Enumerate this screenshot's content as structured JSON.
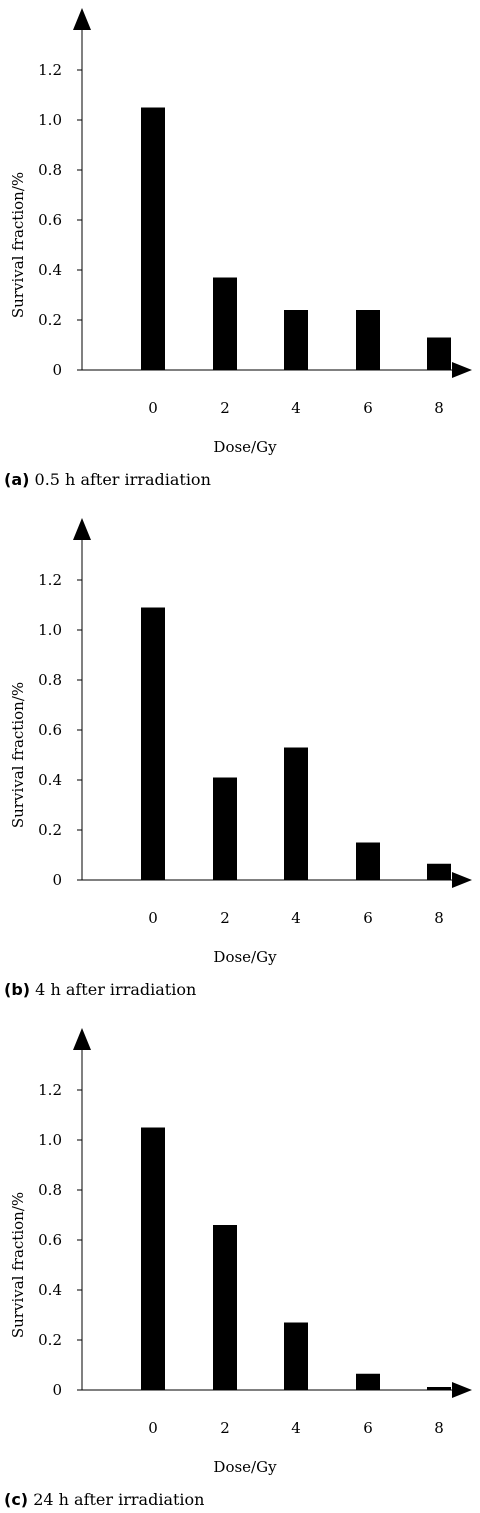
{
  "chart_data": [
    {
      "type": "bar",
      "panel_letter": "(a)",
      "caption": "0.5 h after irradiation",
      "categories": [
        "0",
        "2",
        "4",
        "6",
        "8"
      ],
      "values": [
        1.05,
        0.37,
        0.24,
        0.24,
        0.13
      ],
      "xlabel": "Dose/Gy",
      "ylabel": "Survival fraction/%",
      "yticks": [
        "0",
        "0.2",
        "0.4",
        "0.6",
        "0.8",
        "1.0",
        "1.2"
      ],
      "ylim": [
        0,
        1.2
      ],
      "bar_color": "#000000",
      "grid": false,
      "legend": "none"
    },
    {
      "type": "bar",
      "panel_letter": "(b)",
      "caption": "4 h after irradiation",
      "categories": [
        "0",
        "2",
        "4",
        "6",
        "8"
      ],
      "values": [
        1.09,
        0.41,
        0.53,
        0.15,
        0.065
      ],
      "xlabel": "Dose/Gy",
      "ylabel": "Survival fraction/%",
      "yticks": [
        "0",
        "0.2",
        "0.4",
        "0.6",
        "0.8",
        "1.0",
        "1.2"
      ],
      "ylim": [
        0,
        1.2
      ],
      "bar_color": "#000000",
      "grid": false,
      "legend": "none"
    },
    {
      "type": "bar",
      "panel_letter": "(c)",
      "caption": "24 h after irradiation",
      "categories": [
        "0",
        "2",
        "4",
        "6",
        "8"
      ],
      "values": [
        1.05,
        0.66,
        0.27,
        0.065,
        0.01
      ],
      "xlabel": "Dose/Gy",
      "ylabel": "Survival fraction/%",
      "yticks": [
        "0",
        "0.2",
        "0.4",
        "0.6",
        "0.8",
        "1.0",
        "1.2"
      ],
      "ylim": [
        0,
        1.2
      ],
      "bar_color": "#000000",
      "grid": false,
      "legend": "none"
    }
  ]
}
